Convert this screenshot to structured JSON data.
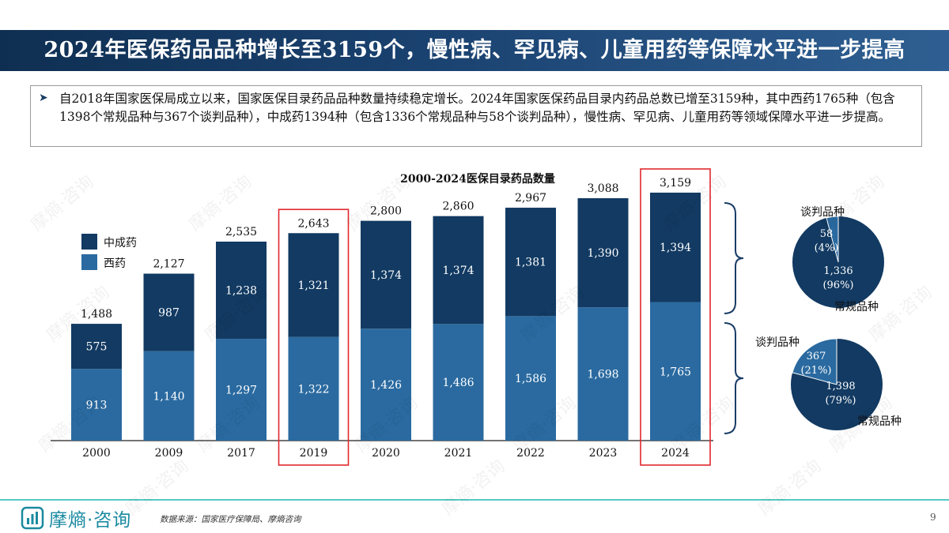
{
  "title": "2024年医保药品品种增长至3159个，慢性病、罕见病、儿童用药等保障水平进一步提高",
  "summary": {
    "bullet_icon": "arrow-right-icon",
    "text": "自2018年国家医保局成立以来，国家医保目录药品品种数量持续稳定增长。2024年国家医保药品目录内药品总数已增至3159种，其中西药1765种（包含1398个常规品种与367个谈判品种），中成药1394种（包含1336个常规品种与58个谈判品种），慢性病、罕见病、儿童用药等领域保障水平进一步提高。"
  },
  "colors": {
    "title_bar": "#1a4270",
    "tcm": "#123a62",
    "western": "#2a6aa0",
    "highlight_box": "#e0282d",
    "footer_line": "#56c8c4"
  },
  "chart_data": [
    {
      "type": "bar",
      "stacked": true,
      "title": "2000-2024医保目录药品数量",
      "categories": [
        "2000",
        "2009",
        "2017",
        "2019",
        "2020",
        "2021",
        "2022",
        "2023",
        "2024"
      ],
      "series": [
        {
          "name": "西药",
          "values": [
            913,
            1140,
            1297,
            1322,
            1426,
            1486,
            1586,
            1698,
            1765
          ]
        },
        {
          "name": "中成药",
          "values": [
            575,
            987,
            1238,
            1321,
            1374,
            1374,
            1381,
            1390,
            1394
          ]
        }
      ],
      "totals": [
        "1,488",
        "2,127",
        "2,535",
        "2,643",
        "2,800",
        "2,860",
        "2,967",
        "3,088",
        "3,159"
      ],
      "western_labels": [
        "913",
        "1,140",
        "1,297",
        "1,322",
        "1,426",
        "1,486",
        "1,586",
        "1,698",
        "1,765"
      ],
      "tcm_labels": [
        "575",
        "987",
        "1,238",
        "1,321",
        "1,374",
        "1,374",
        "1,381",
        "1,390",
        "1,394"
      ],
      "highlighted_categories": [
        "2019",
        "2024"
      ],
      "legend": [
        "中成药",
        "西药"
      ],
      "legend_position": "top-left",
      "ylim": [
        0,
        3400
      ]
    },
    {
      "type": "pie",
      "slices": [
        {
          "name": "谈判品种",
          "value": 58,
          "value_label": "58",
          "pct_label": "(4%)"
        },
        {
          "name": "常规品种",
          "value": 1336,
          "value_label": "1,336",
          "pct_label": "(96%)"
        }
      ]
    },
    {
      "type": "pie",
      "slices": [
        {
          "name": "谈判品种",
          "value": 367,
          "value_label": "367",
          "pct_label": "(21%)"
        },
        {
          "name": "常规品种",
          "value": 1398,
          "value_label": "1,398",
          "pct_label": "(79%)"
        }
      ]
    }
  ],
  "footer": {
    "logo_icon": "building-logo-icon",
    "logo_text": "摩熵·咨询",
    "source": "数据来源：国家医疗保障局、摩熵咨询",
    "page_number": "9",
    "watermark": "摩熵·咨询"
  }
}
